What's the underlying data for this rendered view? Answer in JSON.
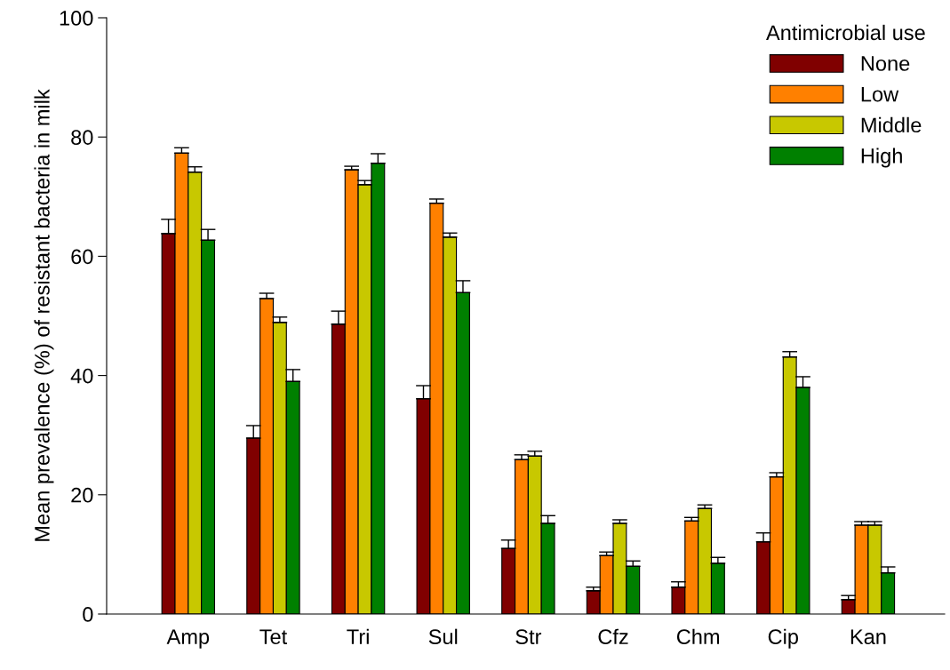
{
  "chart_data": {
    "type": "bar",
    "ylabel": "Mean prevalence (%) of resistant bacteria in milk",
    "legend_title": "Antimicrobial use",
    "categories": [
      "Amp",
      "Tet",
      "Tri",
      "Sul",
      "Str",
      "Cfz",
      "Chm",
      "Cip",
      "Kan"
    ],
    "series": [
      {
        "name": "None",
        "color": "#800000",
        "values": [
          63.8,
          29.5,
          48.6,
          36.1,
          11.0,
          3.9,
          4.5,
          12.1,
          2.4
        ],
        "errors": [
          [
            63.8,
            66.2
          ],
          [
            29.5,
            31.6
          ],
          [
            48.6,
            50.8
          ],
          [
            36.1,
            38.3
          ],
          [
            11.0,
            12.4
          ],
          [
            3.9,
            4.5
          ],
          [
            4.5,
            5.4
          ],
          [
            12.1,
            13.6
          ],
          [
            2.4,
            3.1
          ]
        ]
      },
      {
        "name": "Low",
        "color": "#ff8000",
        "values": [
          77.3,
          52.9,
          74.5,
          68.9,
          25.9,
          9.8,
          15.6,
          23.0,
          14.9
        ],
        "errors": [
          [
            77.3,
            78.2
          ],
          [
            52.9,
            53.8
          ],
          [
            74.5,
            75.1
          ],
          [
            68.9,
            69.6
          ],
          [
            25.9,
            26.7
          ],
          [
            9.8,
            10.4
          ],
          [
            15.6,
            16.2
          ],
          [
            23.0,
            23.7
          ],
          [
            14.9,
            15.5
          ]
        ]
      },
      {
        "name": "Middle",
        "color": "#c8c800",
        "values": [
          74.1,
          48.9,
          72.0,
          63.2,
          26.5,
          15.2,
          17.7,
          43.1,
          14.9
        ],
        "errors": [
          [
            74.1,
            75.0
          ],
          [
            48.9,
            49.8
          ],
          [
            72.0,
            72.7
          ],
          [
            63.2,
            63.9
          ],
          [
            26.5,
            27.3
          ],
          [
            15.2,
            15.8
          ],
          [
            17.7,
            18.3
          ],
          [
            43.1,
            44.0
          ],
          [
            14.9,
            15.5
          ]
        ]
      },
      {
        "name": "High",
        "color": "#008000",
        "values": [
          62.7,
          39.0,
          75.6,
          53.9,
          15.2,
          8.0,
          8.5,
          38.0,
          6.9
        ],
        "errors": [
          [
            62.7,
            64.5
          ],
          [
            39.0,
            41.0
          ],
          [
            75.6,
            77.2
          ],
          [
            53.9,
            55.9
          ],
          [
            15.2,
            16.5
          ],
          [
            8.0,
            8.9
          ],
          [
            8.5,
            9.5
          ],
          [
            38.0,
            39.8
          ],
          [
            6.9,
            7.9
          ]
        ]
      }
    ],
    "ylim": [
      0,
      100
    ],
    "yticks": [
      0,
      20,
      40,
      60,
      80,
      100
    ],
    "grid": false,
    "legend": "top right"
  }
}
